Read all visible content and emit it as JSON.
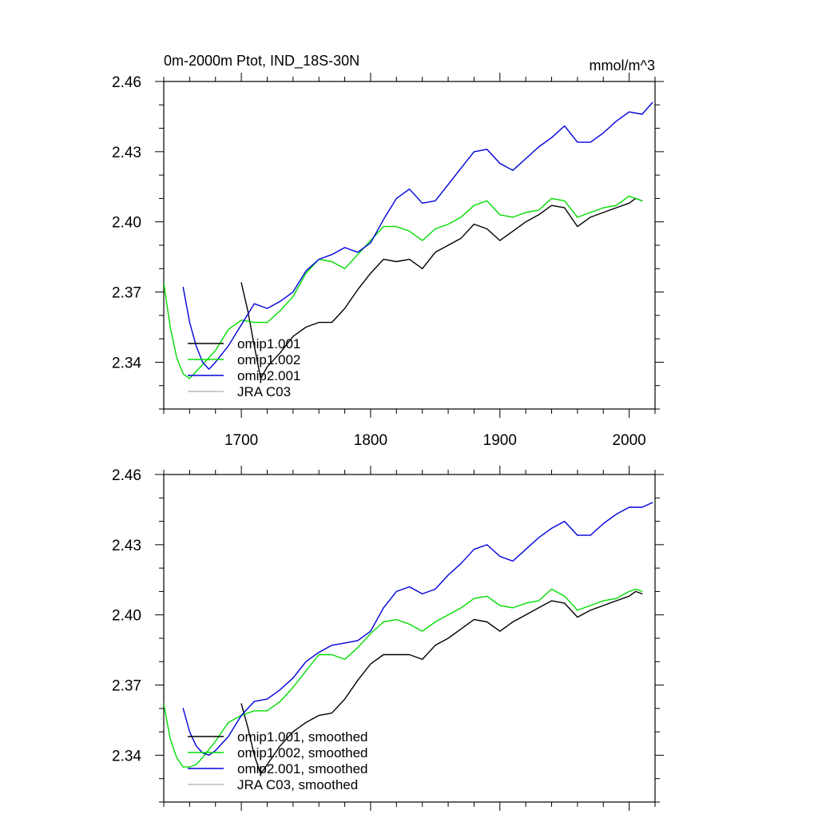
{
  "chart_data": [
    {
      "type": "line",
      "title": "0m-2000m Ptot, IND_18S-30N",
      "units": "mmol/m^3",
      "xlim": [
        1640,
        2020
      ],
      "ylim": [
        2.32,
        2.46
      ],
      "x_ticks": [
        1700,
        1800,
        1900,
        2000
      ],
      "y_ticks": [
        2.34,
        2.37,
        2.4,
        2.43,
        2.46
      ],
      "y_tick_labels": [
        "2.34",
        "2.37",
        "2.40",
        "2.43",
        "2.46"
      ],
      "grid": false,
      "legend_position": "bottom-left",
      "series": [
        {
          "name": "omip1.001",
          "color": "#000000",
          "x": [
            1700,
            1705,
            1710,
            1715,
            1720,
            1730,
            1740,
            1750,
            1760,
            1770,
            1780,
            1790,
            1800,
            1810,
            1820,
            1830,
            1840,
            1850,
            1860,
            1870,
            1880,
            1890,
            1900,
            1910,
            1920,
            1930,
            1940,
            1950,
            1960,
            1970,
            1980,
            1990,
            2000,
            2005,
            2010
          ],
          "y": [
            2.374,
            2.362,
            2.347,
            2.333,
            2.338,
            2.344,
            2.351,
            2.355,
            2.357,
            2.357,
            2.363,
            2.371,
            2.378,
            2.384,
            2.383,
            2.384,
            2.38,
            2.387,
            2.39,
            2.393,
            2.399,
            2.397,
            2.392,
            2.396,
            2.4,
            2.403,
            2.407,
            2.406,
            2.398,
            2.402,
            2.404,
            2.406,
            2.408,
            2.41,
            2.409
          ]
        },
        {
          "name": "omip1.002",
          "color": "#00dd00",
          "x": [
            1640,
            1645,
            1650,
            1655,
            1660,
            1665,
            1670,
            1680,
            1690,
            1700,
            1710,
            1720,
            1730,
            1740,
            1750,
            1760,
            1770,
            1780,
            1790,
            1800,
            1810,
            1820,
            1830,
            1840,
            1850,
            1860,
            1870,
            1880,
            1890,
            1900,
            1910,
            1920,
            1930,
            1940,
            1950,
            1960,
            1970,
            1980,
            1990,
            2000,
            2005,
            2010
          ],
          "y": [
            2.374,
            2.355,
            2.342,
            2.335,
            2.333,
            2.336,
            2.339,
            2.345,
            2.354,
            2.358,
            2.357,
            2.357,
            2.362,
            2.368,
            2.378,
            2.384,
            2.383,
            2.38,
            2.386,
            2.392,
            2.398,
            2.398,
            2.396,
            2.392,
            2.397,
            2.399,
            2.402,
            2.407,
            2.409,
            2.403,
            2.402,
            2.404,
            2.405,
            2.41,
            2.409,
            2.402,
            2.404,
            2.406,
            2.407,
            2.411,
            2.41,
            2.409
          ]
        },
        {
          "name": "omip2.001",
          "color": "#0000dd",
          "x": [
            1655,
            1660,
            1665,
            1670,
            1675,
            1680,
            1690,
            1700,
            1710,
            1720,
            1730,
            1740,
            1750,
            1760,
            1770,
            1780,
            1790,
            1800,
            1810,
            1820,
            1830,
            1840,
            1850,
            1860,
            1870,
            1880,
            1890,
            1900,
            1910,
            1920,
            1930,
            1940,
            1950,
            1960,
            1970,
            1980,
            1990,
            2000,
            2010,
            2018
          ],
          "y": [
            2.372,
            2.357,
            2.347,
            2.34,
            2.337,
            2.34,
            2.347,
            2.356,
            2.365,
            2.363,
            2.366,
            2.37,
            2.379,
            2.384,
            2.386,
            2.389,
            2.387,
            2.391,
            2.401,
            2.41,
            2.414,
            2.408,
            2.409,
            2.416,
            2.423,
            2.43,
            2.431,
            2.425,
            2.422,
            2.427,
            2.432,
            2.436,
            2.441,
            2.434,
            2.434,
            2.438,
            2.443,
            2.447,
            2.446,
            2.451
          ]
        },
        {
          "name": "JRA C03",
          "color": "#bbbbbb",
          "x": [],
          "y": []
        }
      ]
    },
    {
      "type": "line",
      "title": "",
      "xlim": [
        1640,
        2020
      ],
      "ylim": [
        2.32,
        2.46
      ],
      "x_ticks": [
        1700,
        1800,
        1900,
        2000
      ],
      "y_ticks": [
        2.34,
        2.37,
        2.4,
        2.43,
        2.46
      ],
      "y_tick_labels": [
        "2.34",
        "2.37",
        "2.40",
        "2.43",
        "2.46"
      ],
      "grid": false,
      "legend_position": "bottom-left",
      "series": [
        {
          "name": "omip1.001, smoothed",
          "color": "#000000",
          "x": [
            1700,
            1705,
            1710,
            1715,
            1720,
            1730,
            1740,
            1750,
            1760,
            1770,
            1780,
            1790,
            1800,
            1810,
            1820,
            1830,
            1840,
            1850,
            1860,
            1870,
            1880,
            1890,
            1900,
            1910,
            1920,
            1930,
            1940,
            1950,
            1960,
            1970,
            1980,
            1990,
            2000,
            2005,
            2010
          ],
          "y": [
            2.362,
            2.352,
            2.34,
            2.332,
            2.336,
            2.344,
            2.35,
            2.354,
            2.357,
            2.358,
            2.364,
            2.372,
            2.379,
            2.383,
            2.383,
            2.383,
            2.381,
            2.387,
            2.39,
            2.394,
            2.398,
            2.397,
            2.393,
            2.397,
            2.4,
            2.403,
            2.406,
            2.405,
            2.399,
            2.402,
            2.404,
            2.406,
            2.408,
            2.41,
            2.409
          ]
        },
        {
          "name": "omip1.002, smoothed",
          "color": "#00dd00",
          "x": [
            1640,
            1645,
            1650,
            1655,
            1660,
            1665,
            1670,
            1680,
            1690,
            1700,
            1710,
            1720,
            1730,
            1740,
            1750,
            1760,
            1770,
            1780,
            1790,
            1800,
            1810,
            1820,
            1830,
            1840,
            1850,
            1860,
            1870,
            1880,
            1890,
            1900,
            1910,
            1920,
            1930,
            1940,
            1950,
            1960,
            1970,
            1980,
            1990,
            2000,
            2005,
            2010
          ],
          "y": [
            2.362,
            2.347,
            2.339,
            2.335,
            2.335,
            2.336,
            2.339,
            2.346,
            2.354,
            2.357,
            2.359,
            2.359,
            2.363,
            2.369,
            2.376,
            2.383,
            2.383,
            2.381,
            2.386,
            2.392,
            2.397,
            2.398,
            2.396,
            2.393,
            2.397,
            2.4,
            2.403,
            2.407,
            2.408,
            2.404,
            2.403,
            2.405,
            2.406,
            2.411,
            2.408,
            2.402,
            2.404,
            2.406,
            2.407,
            2.41,
            2.411,
            2.41
          ]
        },
        {
          "name": "omip2.001, smoothed",
          "color": "#0000dd",
          "x": [
            1655,
            1660,
            1665,
            1670,
            1675,
            1680,
            1690,
            1700,
            1710,
            1720,
            1730,
            1740,
            1750,
            1760,
            1770,
            1780,
            1790,
            1800,
            1810,
            1820,
            1830,
            1840,
            1850,
            1860,
            1870,
            1880,
            1890,
            1900,
            1910,
            1920,
            1930,
            1940,
            1950,
            1960,
            1970,
            1980,
            1990,
            2000,
            2010,
            2018
          ],
          "y": [
            2.36,
            2.35,
            2.344,
            2.341,
            2.34,
            2.342,
            2.348,
            2.357,
            2.363,
            2.364,
            2.368,
            2.373,
            2.38,
            2.384,
            2.387,
            2.388,
            2.389,
            2.393,
            2.403,
            2.41,
            2.412,
            2.409,
            2.411,
            2.417,
            2.422,
            2.428,
            2.43,
            2.425,
            2.423,
            2.428,
            2.433,
            2.437,
            2.44,
            2.434,
            2.434,
            2.439,
            2.443,
            2.446,
            2.446,
            2.448
          ]
        },
        {
          "name": "JRA C03, smoothed",
          "color": "#bbbbbb",
          "x": [],
          "y": []
        }
      ]
    }
  ]
}
